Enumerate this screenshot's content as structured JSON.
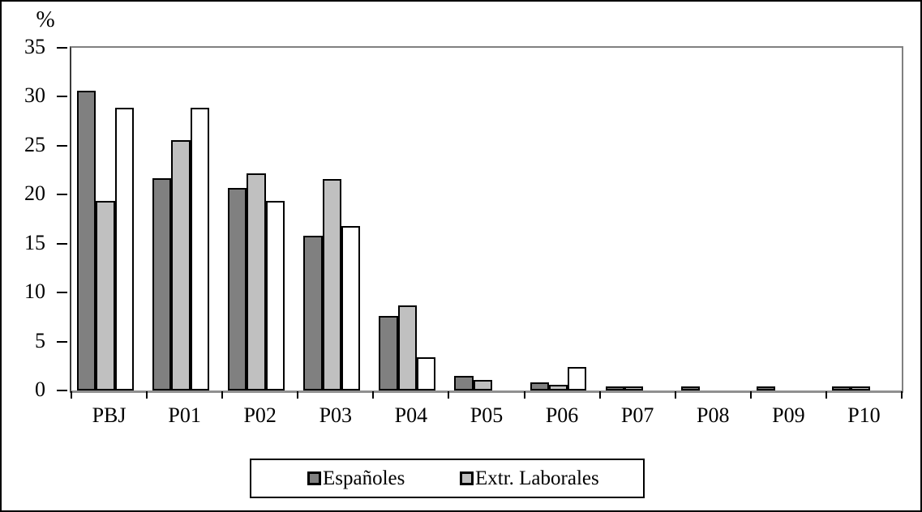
{
  "chart_data": {
    "type": "bar",
    "title": "",
    "ylabel": "%",
    "xlabel": "",
    "ylim": [
      0,
      35
    ],
    "yticks": [
      0,
      5,
      10,
      15,
      20,
      25,
      30,
      35
    ],
    "grid": false,
    "legend_position": "bottom-center",
    "legend": [
      "Españoles",
      "Extr. Laborales"
    ],
    "categories": [
      "PBJ",
      "P01",
      "P02",
      "P03",
      "P04",
      "P05",
      "P06",
      "P07",
      "P08",
      "P09",
      "P10"
    ],
    "series": [
      {
        "name": "Españoles",
        "color": "#808080",
        "in_legend": true,
        "values": [
          30.6,
          21.7,
          20.7,
          15.8,
          7.6,
          1.5,
          0.8,
          0.3,
          0.3,
          0.2,
          0.2
        ]
      },
      {
        "name": "Extr. Laborales",
        "color": "#C0C0C0",
        "in_legend": true,
        "values": [
          19.4,
          25.6,
          22.2,
          21.6,
          8.7,
          1.1,
          0.6,
          0.25,
          0,
          0,
          0.2
        ]
      },
      {
        "name": "",
        "color": "#FFFFFF",
        "in_legend": false,
        "values": [
          28.9,
          28.9,
          19.4,
          16.8,
          3.4,
          0,
          2.4,
          0,
          0,
          0,
          0
        ]
      }
    ],
    "bar_border_color": "#000000",
    "frame_color": "#808080"
  }
}
